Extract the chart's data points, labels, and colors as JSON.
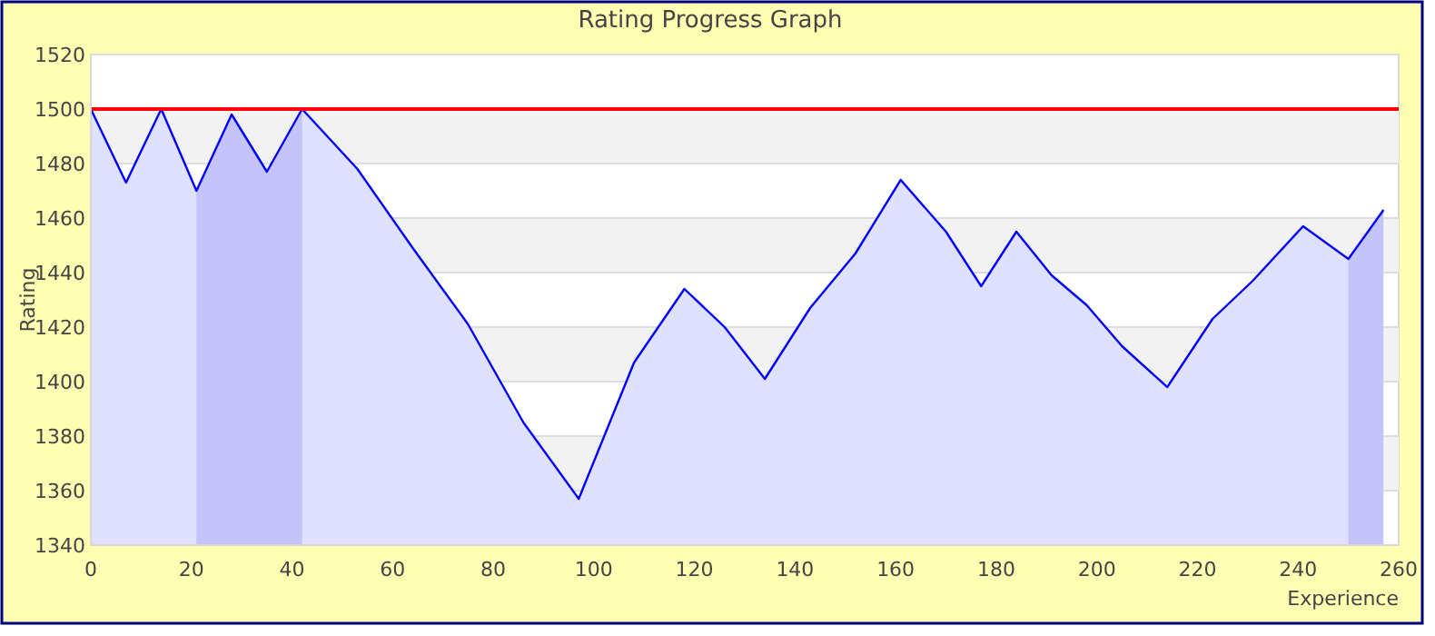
{
  "chart_data": {
    "type": "area",
    "title": "Rating Progress Graph",
    "xlabel": "Experience",
    "ylabel": "Rating",
    "xlim": [
      0,
      260
    ],
    "xticks": [
      0,
      20,
      40,
      60,
      80,
      100,
      120,
      140,
      160,
      180,
      200,
      220,
      240,
      260
    ],
    "ylim": [
      1340,
      1520
    ],
    "yticks": [
      1340,
      1360,
      1380,
      1400,
      1420,
      1440,
      1460,
      1480,
      1500,
      1520
    ],
    "grid": "y",
    "line_style": "solid",
    "marker": "none",
    "series": [
      {
        "color": "#0000ff",
        "x": [
          0,
          7,
          14,
          21,
          28,
          35,
          42,
          53,
          64,
          75,
          86,
          97,
          108,
          118,
          126,
          134,
          143,
          152,
          161,
          170,
          177,
          184,
          191,
          198,
          205,
          214,
          223,
          231,
          241,
          250,
          257
        ],
        "values": [
          1500,
          1473,
          1500,
          1470,
          1498,
          1477,
          1500,
          1478,
          1449,
          1421,
          1385,
          1357,
          1407,
          1434,
          1420,
          1401,
          1427,
          1447,
          1474,
          1455,
          1435,
          1455,
          1439,
          1428,
          1413,
          1398,
          1423,
          1437,
          1457,
          1445,
          1463
        ]
      }
    ],
    "ref_lines": [
      {
        "axis": "y",
        "value": 1500,
        "color": "#ff0000"
      }
    ],
    "bands": [
      {
        "axis": "x",
        "from": 21,
        "to": 42,
        "color": "#e0e0fa"
      },
      {
        "axis": "x",
        "from": 250,
        "to": 257,
        "color": "#e0e0fa"
      }
    ]
  }
}
